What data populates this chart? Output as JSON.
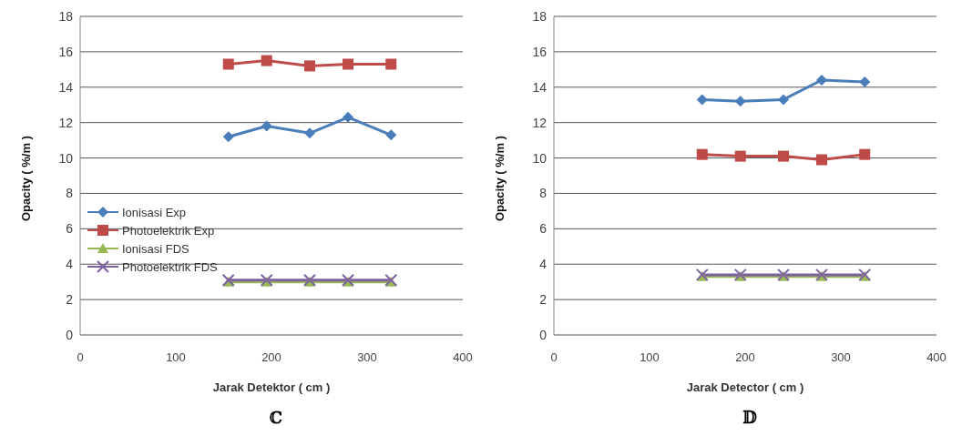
{
  "chart_data": [
    {
      "type": "line",
      "xlabel": "Jarak Detektor ( cm )",
      "ylabel": "Opacity ( %/m )",
      "annotations": [
        "ℂ"
      ],
      "x": [
        155,
        195,
        240,
        280,
        325
      ],
      "xlim": [
        0,
        400
      ],
      "xticks": [
        0,
        100,
        200,
        300,
        400
      ],
      "ylim": [
        0,
        18
      ],
      "yticks": [
        0,
        2,
        4,
        6,
        8,
        10,
        12,
        14,
        16,
        18
      ],
      "grid": "y",
      "legend": "left",
      "series": [
        {
          "name": "Ionisasi Exp",
          "color": "#4a7ebb",
          "marker": "diamond",
          "values": [
            11.2,
            11.8,
            11.4,
            12.3,
            11.3
          ]
        },
        {
          "name": "Photoelektrik Exp",
          "color": "#be4b48",
          "marker": "square",
          "values": [
            15.3,
            15.5,
            15.2,
            15.3,
            15.3
          ]
        },
        {
          "name": "Ionisasi FDS",
          "color": "#98b954",
          "marker": "triangle",
          "values": [
            3.0,
            3.0,
            3.0,
            3.0,
            3.0
          ]
        },
        {
          "name": "Photoelektrik FDS",
          "color": "#7d60a0",
          "marker": "cross",
          "values": [
            3.1,
            3.1,
            3.1,
            3.1,
            3.1
          ]
        }
      ]
    },
    {
      "type": "line",
      "xlabel": "Jarak Detector ( cm )",
      "ylabel": "Opacity ( %/m )",
      "annotations": [
        "𝔻"
      ],
      "x": [
        155,
        195,
        240,
        280,
        325
      ],
      "xlim": [
        0,
        400
      ],
      "xticks": [
        0,
        100,
        200,
        300,
        400
      ],
      "ylim": [
        0,
        18
      ],
      "yticks": [
        0,
        2,
        4,
        6,
        8,
        10,
        12,
        14,
        16,
        18
      ],
      "grid": "y",
      "series": [
        {
          "color": "#4a7ebb",
          "marker": "diamond",
          "values": [
            13.3,
            13.2,
            13.3,
            14.4,
            14.3
          ]
        },
        {
          "color": "#be4b48",
          "marker": "square",
          "values": [
            10.2,
            10.1,
            10.1,
            9.9,
            10.2
          ]
        },
        {
          "color": "#98b954",
          "marker": "triangle",
          "values": [
            3.3,
            3.3,
            3.3,
            3.3,
            3.3
          ]
        },
        {
          "color": "#7d60a0",
          "marker": "cross",
          "values": [
            3.4,
            3.4,
            3.4,
            3.4,
            3.4
          ]
        }
      ]
    }
  ]
}
